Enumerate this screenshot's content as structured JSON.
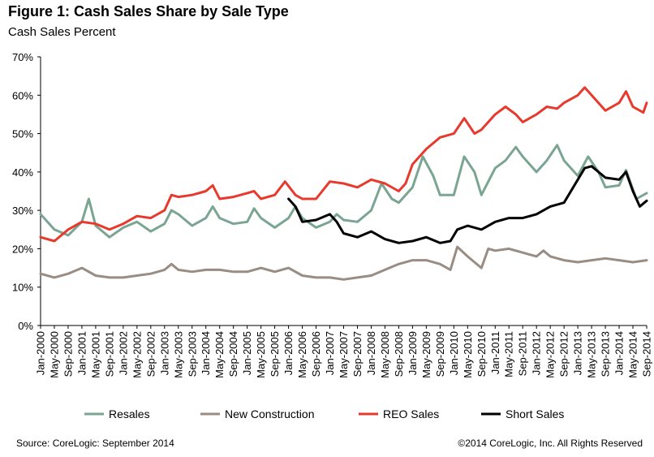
{
  "title": "Figure 1: Cash Sales Share by Sale Type",
  "subtitle": "Cash Sales Percent",
  "source": "Source: CoreLogic: September 2014",
  "copyright": "©2014 CoreLogic, Inc. All Rights Reserved",
  "chart_data": {
    "type": "line",
    "ylim": [
      0,
      70
    ],
    "y_ticks": [
      "0%",
      "10%",
      "20%",
      "30%",
      "40%",
      "50%",
      "60%",
      "70%"
    ],
    "x_tick_labels": [
      "Jan-2000",
      "May-2000",
      "Sep-2000",
      "Jan-2001",
      "May-2001",
      "Sep-2001",
      "Jan-2002",
      "May-2002",
      "Sep-2002",
      "Jan-2003",
      "May-2003",
      "Sep-2003",
      "Jan-2004",
      "May-2004",
      "Sep-2004",
      "Jan-2005",
      "May-2005",
      "Sep-2005",
      "Jan-2006",
      "May-2006",
      "Sep-2006",
      "Jan-2007",
      "May-2007",
      "Sep-2007",
      "Jan-2008",
      "May-2008",
      "Sep-2008",
      "Jan-2009",
      "May-2009",
      "Sep-2009",
      "Jan-2010",
      "May-2010",
      "Sep-2010",
      "Jan-2011",
      "May-2011",
      "Sep-2011",
      "Jan-2012",
      "May-2012",
      "Sep-2012",
      "Jan-2013",
      "May-2013",
      "Sep-2013",
      "Jan-2014",
      "May-2014",
      "Sep-2014"
    ],
    "legend_position": "bottom",
    "grid": false,
    "series": [
      {
        "name": "Resales",
        "color": "#7aa593",
        "points": [
          [
            "Jan-2000",
            29
          ],
          [
            "May-2000",
            25
          ],
          [
            "Sep-2000",
            23.5
          ],
          [
            "Jan-2001",
            27
          ],
          [
            "Mar-2001",
            33
          ],
          [
            "May-2001",
            26
          ],
          [
            "Sep-2001",
            23
          ],
          [
            "Jan-2002",
            25.5
          ],
          [
            "May-2002",
            27
          ],
          [
            "Sep-2002",
            24.5
          ],
          [
            "Jan-2003",
            26.5
          ],
          [
            "Mar-2003",
            30
          ],
          [
            "May-2003",
            29
          ],
          [
            "Sep-2003",
            26
          ],
          [
            "Jan-2004",
            28
          ],
          [
            "Mar-2004",
            31
          ],
          [
            "May-2004",
            28
          ],
          [
            "Sep-2004",
            26.5
          ],
          [
            "Jan-2005",
            27
          ],
          [
            "Mar-2005",
            30.5
          ],
          [
            "May-2005",
            28
          ],
          [
            "Sep-2005",
            25.5
          ],
          [
            "Jan-2006",
            28
          ],
          [
            "Mar-2006",
            31
          ],
          [
            "May-2006",
            28
          ],
          [
            "Sep-2006",
            25.5
          ],
          [
            "Jan-2007",
            27
          ],
          [
            "Mar-2007",
            29
          ],
          [
            "May-2007",
            27.5
          ],
          [
            "Sep-2007",
            27
          ],
          [
            "Jan-2008",
            30
          ],
          [
            "Apr-2008",
            37
          ],
          [
            "Jul-2008",
            33
          ],
          [
            "Sep-2008",
            32
          ],
          [
            "Jan-2009",
            36
          ],
          [
            "Apr-2009",
            44
          ],
          [
            "Jul-2009",
            39
          ],
          [
            "Sep-2009",
            34
          ],
          [
            "Jan-2010",
            34
          ],
          [
            "Apr-2010",
            44
          ],
          [
            "Jul-2010",
            40
          ],
          [
            "Sep-2010",
            34
          ],
          [
            "Jan-2011",
            41
          ],
          [
            "Apr-2011",
            43
          ],
          [
            "Jul-2011",
            46.5
          ],
          [
            "Sep-2011",
            44
          ],
          [
            "Jan-2012",
            40
          ],
          [
            "Apr-2012",
            43
          ],
          [
            "Jul-2012",
            47
          ],
          [
            "Sep-2012",
            43
          ],
          [
            "Jan-2013",
            39
          ],
          [
            "Apr-2013",
            44
          ],
          [
            "Jul-2013",
            40
          ],
          [
            "Sep-2013",
            36
          ],
          [
            "Jan-2014",
            36.5
          ],
          [
            "Mar-2014",
            40.5
          ],
          [
            "Jun-2014",
            33
          ],
          [
            "Sep-2014",
            34.5
          ]
        ]
      },
      {
        "name": "New Construction",
        "color": "#998c83",
        "points": [
          [
            "Jan-2000",
            13.5
          ],
          [
            "May-2000",
            12.5
          ],
          [
            "Sep-2000",
            13.5
          ],
          [
            "Jan-2001",
            15
          ],
          [
            "May-2001",
            13
          ],
          [
            "Sep-2001",
            12.5
          ],
          [
            "Jan-2002",
            12.5
          ],
          [
            "May-2002",
            13
          ],
          [
            "Sep-2002",
            13.5
          ],
          [
            "Jan-2003",
            14.5
          ],
          [
            "Mar-2003",
            16
          ],
          [
            "May-2003",
            14.5
          ],
          [
            "Sep-2003",
            14
          ],
          [
            "Jan-2004",
            14.5
          ],
          [
            "May-2004",
            14.5
          ],
          [
            "Sep-2004",
            14
          ],
          [
            "Jan-2005",
            14
          ],
          [
            "May-2005",
            15
          ],
          [
            "Sep-2005",
            14
          ],
          [
            "Jan-2006",
            15
          ],
          [
            "May-2006",
            13
          ],
          [
            "Sep-2006",
            12.5
          ],
          [
            "Jan-2007",
            12.5
          ],
          [
            "May-2007",
            12
          ],
          [
            "Sep-2007",
            12.5
          ],
          [
            "Jan-2008",
            13
          ],
          [
            "May-2008",
            14.5
          ],
          [
            "Sep-2008",
            16
          ],
          [
            "Jan-2009",
            17
          ],
          [
            "May-2009",
            17
          ],
          [
            "Sep-2009",
            16
          ],
          [
            "Dec-2009",
            14.5
          ],
          [
            "Feb-2010",
            20.5
          ],
          [
            "May-2010",
            18
          ],
          [
            "Sep-2010",
            15
          ],
          [
            "Nov-2010",
            20
          ],
          [
            "Jan-2011",
            19.5
          ],
          [
            "May-2011",
            20
          ],
          [
            "Sep-2011",
            19
          ],
          [
            "Jan-2012",
            18
          ],
          [
            "Mar-2012",
            19.5
          ],
          [
            "May-2012",
            18
          ],
          [
            "Sep-2012",
            17
          ],
          [
            "Jan-2013",
            16.5
          ],
          [
            "May-2013",
            17
          ],
          [
            "Sep-2013",
            17.5
          ],
          [
            "Jan-2014",
            17
          ],
          [
            "May-2014",
            16.5
          ],
          [
            "Sep-2014",
            17
          ]
        ]
      },
      {
        "name": "REO Sales",
        "color": "#e8392d",
        "points": [
          [
            "Jan-2000",
            23
          ],
          [
            "May-2000",
            22
          ],
          [
            "Sep-2000",
            25
          ],
          [
            "Jan-2001",
            27
          ],
          [
            "May-2001",
            26.5
          ],
          [
            "Sep-2001",
            25
          ],
          [
            "Jan-2002",
            26.5
          ],
          [
            "May-2002",
            28.5
          ],
          [
            "Sep-2002",
            28
          ],
          [
            "Jan-2003",
            30
          ],
          [
            "Mar-2003",
            34
          ],
          [
            "May-2003",
            33.5
          ],
          [
            "Sep-2003",
            34
          ],
          [
            "Jan-2004",
            35
          ],
          [
            "Mar-2004",
            36.5
          ],
          [
            "May-2004",
            33
          ],
          [
            "Sep-2004",
            33.5
          ],
          [
            "Jan-2005",
            34.5
          ],
          [
            "Mar-2005",
            35
          ],
          [
            "May-2005",
            33
          ],
          [
            "Sep-2005",
            34
          ],
          [
            "Dec-2005",
            37.5
          ],
          [
            "Mar-2006",
            34
          ],
          [
            "May-2006",
            33
          ],
          [
            "Sep-2006",
            33
          ],
          [
            "Jan-2007",
            37.5
          ],
          [
            "May-2007",
            37
          ],
          [
            "Sep-2007",
            36
          ],
          [
            "Jan-2008",
            38
          ],
          [
            "May-2008",
            37
          ],
          [
            "Sep-2008",
            35
          ],
          [
            "Nov-2008",
            37
          ],
          [
            "Jan-2009",
            42
          ],
          [
            "May-2009",
            46
          ],
          [
            "Sep-2009",
            49
          ],
          [
            "Jan-2010",
            50
          ],
          [
            "Apr-2010",
            54
          ],
          [
            "Jul-2010",
            50
          ],
          [
            "Sep-2010",
            51
          ],
          [
            "Jan-2011",
            55
          ],
          [
            "Apr-2011",
            57
          ],
          [
            "Jul-2011",
            55
          ],
          [
            "Sep-2011",
            53
          ],
          [
            "Jan-2012",
            55
          ],
          [
            "Apr-2012",
            57
          ],
          [
            "Jul-2012",
            56.5
          ],
          [
            "Sep-2012",
            58
          ],
          [
            "Jan-2013",
            60
          ],
          [
            "Mar-2013",
            62
          ],
          [
            "May-2013",
            60
          ],
          [
            "Sep-2013",
            56
          ],
          [
            "Jan-2014",
            58
          ],
          [
            "Mar-2014",
            61
          ],
          [
            "May-2014",
            57
          ],
          [
            "Aug-2014",
            55.5
          ],
          [
            "Sep-2014",
            58
          ]
        ]
      },
      {
        "name": "Short Sales",
        "color": "#000000",
        "points": [
          [
            "Jan-2006",
            33
          ],
          [
            "Mar-2006",
            31
          ],
          [
            "May-2006",
            27
          ],
          [
            "Sep-2006",
            27.5
          ],
          [
            "Jan-2007",
            29
          ],
          [
            "Mar-2007",
            27
          ],
          [
            "May-2007",
            24
          ],
          [
            "Sep-2007",
            23
          ],
          [
            "Jan-2008",
            24.5
          ],
          [
            "May-2008",
            22.5
          ],
          [
            "Sep-2008",
            21.5
          ],
          [
            "Jan-2009",
            22
          ],
          [
            "May-2009",
            23
          ],
          [
            "Sep-2009",
            21.5
          ],
          [
            "Dec-2009",
            22
          ],
          [
            "Feb-2010",
            25
          ],
          [
            "May-2010",
            26
          ],
          [
            "Sep-2010",
            25
          ],
          [
            "Jan-2011",
            27
          ],
          [
            "May-2011",
            28
          ],
          [
            "Sep-2011",
            28
          ],
          [
            "Jan-2012",
            29
          ],
          [
            "May-2012",
            31
          ],
          [
            "Sep-2012",
            32
          ],
          [
            "Jan-2013",
            38
          ],
          [
            "Mar-2013",
            41
          ],
          [
            "May-2013",
            41.5
          ],
          [
            "Sep-2013",
            38.5
          ],
          [
            "Jan-2014",
            38
          ],
          [
            "Mar-2014",
            40
          ],
          [
            "May-2014",
            35
          ],
          [
            "Jul-2014",
            31
          ],
          [
            "Sep-2014",
            32.5
          ]
        ]
      }
    ]
  }
}
